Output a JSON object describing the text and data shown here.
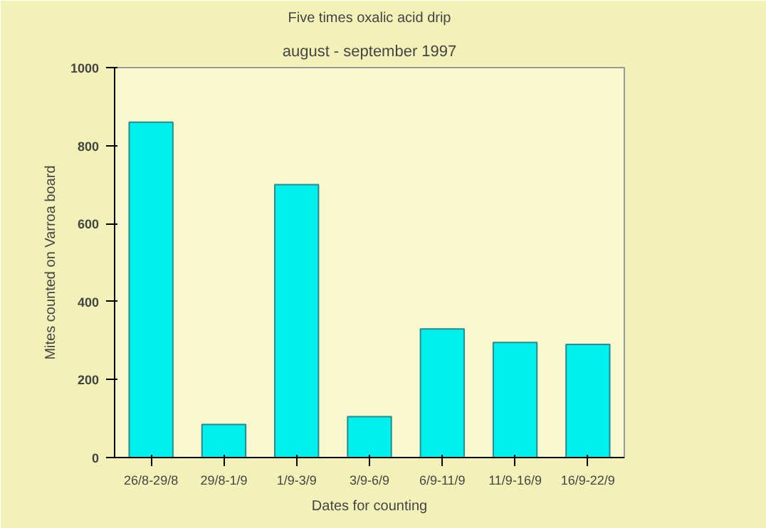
{
  "chart_data": {
    "type": "bar",
    "title": "Five times oxalic acid drip",
    "subtitle": "august - september 1997",
    "xlabel": "Dates for counting",
    "ylabel": "Mites counted on Varroa board",
    "categories": [
      "26/8-29/8",
      "29/8-1/9",
      "1/9-3/9",
      "3/9-6/9",
      "6/9-11/9",
      "11/9-16/9",
      "16/9-22/9"
    ],
    "values": [
      860,
      85,
      700,
      105,
      330,
      295,
      290
    ],
    "color": "#00f0f0",
    "ylim": [
      0,
      1000
    ],
    "yticks": [
      0,
      200,
      400,
      600,
      800,
      1000
    ],
    "grid": false
  }
}
